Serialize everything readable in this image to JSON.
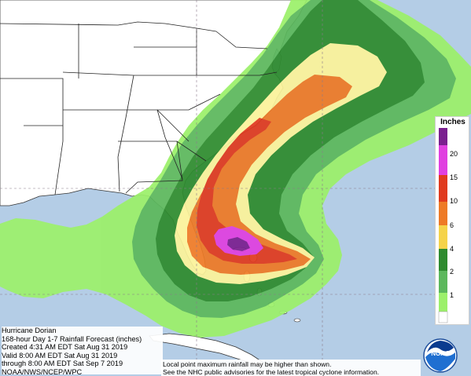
{
  "legend": {
    "title": "Inches",
    "ticks": [
      "20",
      "15",
      "10",
      "6",
      "4",
      "2",
      "1"
    ],
    "colors": [
      "#7a1f8f",
      "#e040e0",
      "#e03a1e",
      "#ee7a26",
      "#f5d34a",
      "#fbf39a",
      "#2e8b2e",
      "#5cb85c",
      "#9cf06a",
      "#ffffff"
    ]
  },
  "info": {
    "lines": [
      "Hurricane Dorian",
      "168-hour Day 1-7 Rainfall Forecast (inches)",
      "Created 4:31 AM EDT Sat Aug 31 2019",
      "Valid 8:00 AM EDT Sat Aug 31 2019",
      "through 8:00 AM EDT Sat Sep 7 2019",
      "NOAA/NWS/NCEP/WPC"
    ]
  },
  "disclaimer": {
    "line1": "Local point maximum rainfall may be higher than shown.",
    "line2": "See the NHC public advisories for the latest tropical cyclone information."
  },
  "logo": {
    "text": "NOAA",
    "icon": "noaa-logo-icon"
  },
  "colors": {
    "ocean": "#b4cde6",
    "land": "#ffffff",
    "border": "#2b2b2b"
  }
}
